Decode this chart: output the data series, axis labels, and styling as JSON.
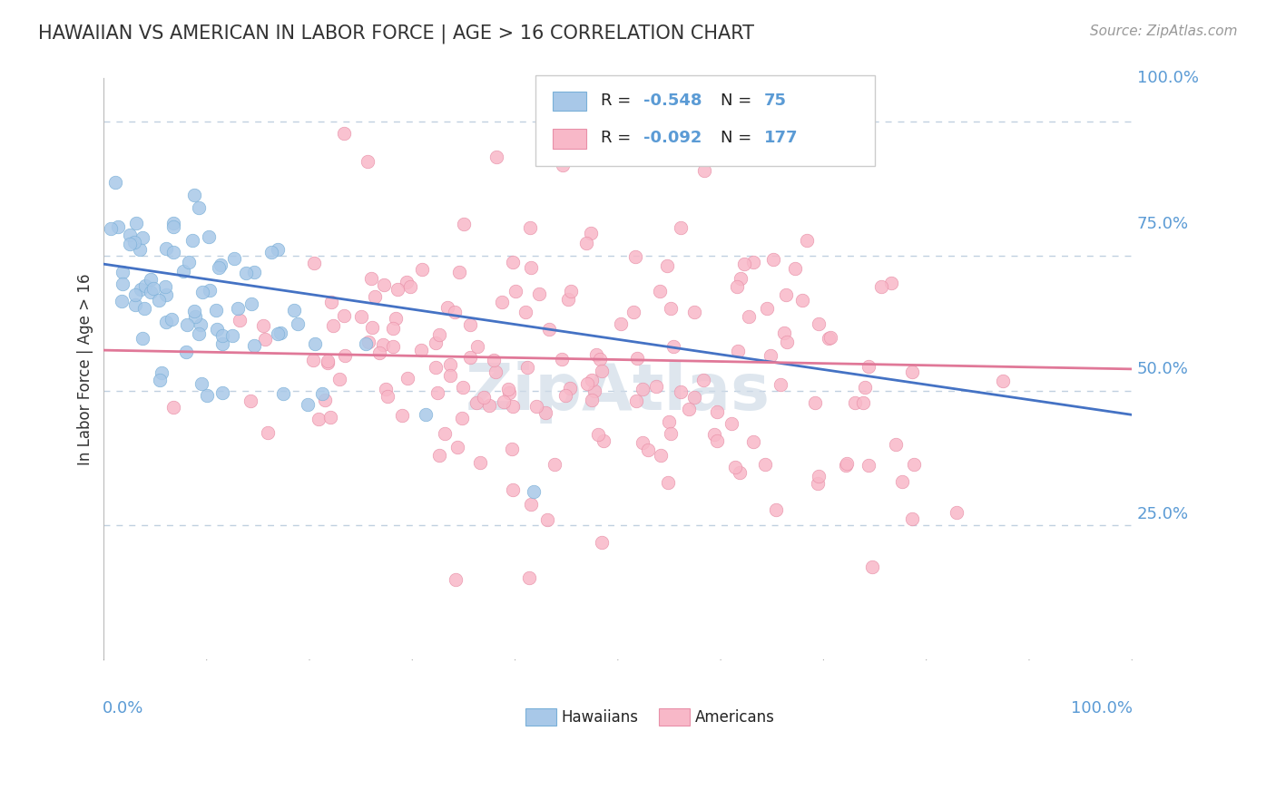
{
  "title": "HAWAIIAN VS AMERICAN IN LABOR FORCE | AGE > 16 CORRELATION CHART",
  "source_text": "Source: ZipAtlas.com",
  "ylabel": "In Labor Force | Age > 16",
  "y_tick_labels": [
    "25.0%",
    "50.0%",
    "75.0%",
    "100.0%"
  ],
  "y_tick_values": [
    0.25,
    0.5,
    0.75,
    1.0
  ],
  "x_range": [
    0.0,
    1.0
  ],
  "y_range": [
    0.0,
    1.08
  ],
  "hawaiians": {
    "R": -0.548,
    "N": 75,
    "color": "#a8c8e8",
    "edge_color": "#7ab0d8",
    "line_color": "#4472c4",
    "seed": 42
  },
  "americans": {
    "R": -0.092,
    "N": 177,
    "color": "#f8b8c8",
    "edge_color": "#e890a8",
    "line_color": "#e07898",
    "seed": 123
  },
  "title_color": "#333333",
  "title_fontsize": 15,
  "axis_label_color": "#5b9bd5",
  "tick_color": "#5b9bd5",
  "grid_color": "#c0d0e0",
  "background_color": "#ffffff",
  "legend_fontsize": 13,
  "source_fontsize": 11,
  "watermark_text": "ZipAtlas",
  "watermark_color": "#d0dce8",
  "h_line_start": 0.735,
  "h_line_end": 0.455,
  "a_line_start": 0.575,
  "a_line_end": 0.54
}
